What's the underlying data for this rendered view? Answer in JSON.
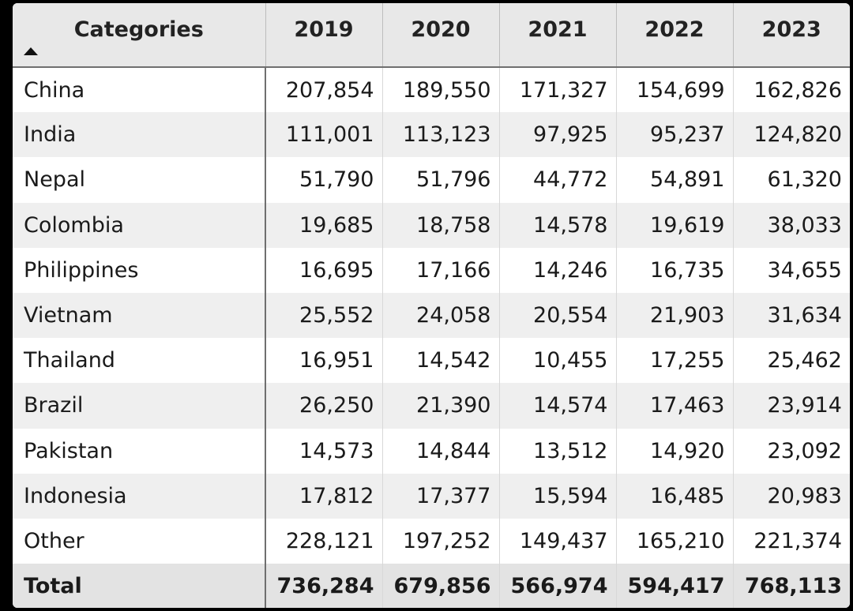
{
  "table": {
    "header": {
      "category_label": "Categories",
      "years": [
        "2019",
        "2020",
        "2021",
        "2022",
        "2023"
      ]
    },
    "rows": [
      {
        "category": "China",
        "values": [
          "207,854",
          "189,550",
          "171,327",
          "154,699",
          "162,826"
        ]
      },
      {
        "category": "India",
        "values": [
          "111,001",
          "113,123",
          "97,925",
          "95,237",
          "124,820"
        ]
      },
      {
        "category": "Nepal",
        "values": [
          "51,790",
          "51,796",
          "44,772",
          "54,891",
          "61,320"
        ]
      },
      {
        "category": "Colombia",
        "values": [
          "19,685",
          "18,758",
          "14,578",
          "19,619",
          "38,033"
        ]
      },
      {
        "category": "Philippines",
        "values": [
          "16,695",
          "17,166",
          "14,246",
          "16,735",
          "34,655"
        ]
      },
      {
        "category": "Vietnam",
        "values": [
          "25,552",
          "24,058",
          "20,554",
          "21,903",
          "31,634"
        ]
      },
      {
        "category": "Thailand",
        "values": [
          "16,951",
          "14,542",
          "10,455",
          "17,255",
          "25,462"
        ]
      },
      {
        "category": "Brazil",
        "values": [
          "26,250",
          "21,390",
          "14,574",
          "17,463",
          "23,914"
        ]
      },
      {
        "category": "Pakistan",
        "values": [
          "14,573",
          "14,844",
          "13,512",
          "14,920",
          "23,092"
        ]
      },
      {
        "category": "Indonesia",
        "values": [
          "17,812",
          "17,377",
          "15,594",
          "16,485",
          "20,983"
        ]
      },
      {
        "category": "Other",
        "values": [
          "228,121",
          "197,252",
          "149,437",
          "165,210",
          "221,374"
        ]
      }
    ],
    "total": {
      "category": "Total",
      "values": [
        "736,284",
        "679,856",
        "566,974",
        "594,417",
        "768,113"
      ]
    }
  },
  "icons": {
    "sort": "sort-ascending-icon"
  },
  "colors": {
    "header_bg": "#e8e8e8",
    "stripe_bg": "#efefef",
    "total_bg": "#e3e3e3"
  }
}
